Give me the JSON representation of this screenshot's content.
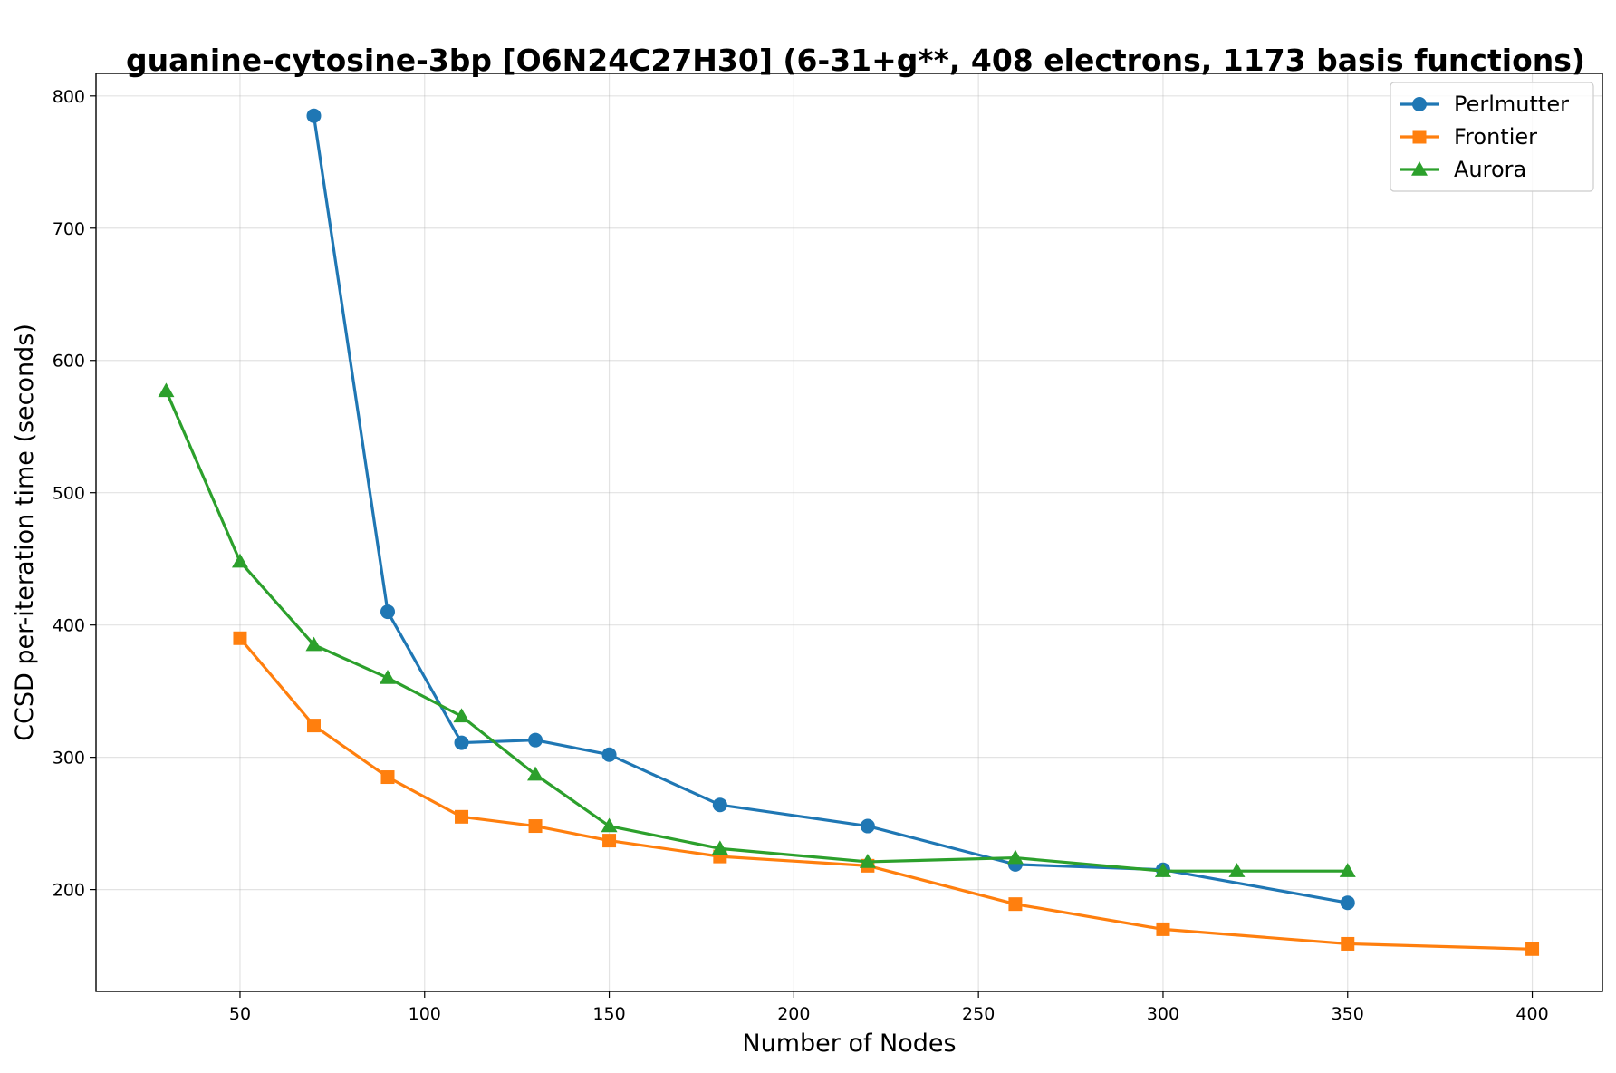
{
  "chart_data": {
    "type": "line",
    "title": "guanine-cytosine-3bp [O6N24C27H30] (6-31+g**, 408 electrons, 1173 basis functions)",
    "xlabel": "Number of Nodes",
    "ylabel": "CCSD per-iteration time (seconds)",
    "xlim": [
      11,
      419
    ],
    "ylim": [
      123,
      817
    ],
    "xticks": [
      50,
      100,
      150,
      200,
      250,
      300,
      350,
      400
    ],
    "yticks": [
      200,
      300,
      400,
      500,
      600,
      700,
      800
    ],
    "grid": true,
    "legend_position": "top-right",
    "series": [
      {
        "name": "Perlmutter",
        "color": "#1f77b4",
        "marker": "circle",
        "x": [
          70,
          90,
          110,
          130,
          150,
          180,
          220,
          260,
          300,
          350
        ],
        "y": [
          785,
          410,
          311,
          313,
          302,
          264,
          248,
          219,
          215,
          190
        ]
      },
      {
        "name": "Frontier",
        "color": "#ff7f0e",
        "marker": "square",
        "x": [
          50,
          70,
          90,
          110,
          130,
          150,
          180,
          220,
          260,
          300,
          350,
          400
        ],
        "y": [
          390,
          324,
          285,
          255,
          248,
          237,
          225,
          218,
          189,
          170,
          159,
          155
        ]
      },
      {
        "name": "Aurora",
        "color": "#2ca02c",
        "marker": "triangle",
        "x": [
          30,
          50,
          70,
          90,
          110,
          130,
          150,
          180,
          220,
          260,
          300,
          320,
          350
        ],
        "y": [
          577,
          448,
          385,
          360,
          331,
          287,
          248,
          231,
          221,
          224,
          214,
          214,
          214
        ]
      }
    ]
  }
}
